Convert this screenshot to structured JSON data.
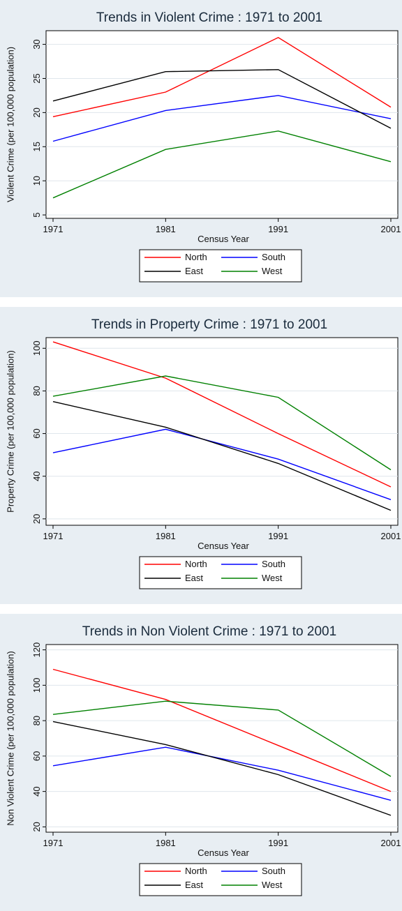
{
  "chart_data": [
    {
      "type": "line",
      "title": "Trends in Violent Crime : 1971 to 2001",
      "xlabel": "Census Year",
      "ylabel": "Violent Crime (per 100,000 population)",
      "x": [
        1971,
        1981,
        1991,
        2001
      ],
      "x_ticks": [
        "1971",
        "1981",
        "1991",
        "2001"
      ],
      "ylim": [
        4.5,
        32
      ],
      "y_ticks": [
        5,
        10,
        15,
        20,
        25,
        30
      ],
      "legend": "bottom, 2 columns, boxed",
      "series": [
        {
          "name": "North",
          "color": "#ff0000",
          "values": [
            19.4,
            23.0,
            31.0,
            20.8
          ]
        },
        {
          "name": "South",
          "color": "#0000ff",
          "values": [
            15.8,
            20.3,
            22.5,
            19.1
          ]
        },
        {
          "name": "East",
          "color": "#000000",
          "values": [
            21.7,
            26.0,
            26.3,
            17.7
          ]
        },
        {
          "name": "West",
          "color": "#008000",
          "values": [
            7.5,
            14.6,
            17.3,
            12.8
          ]
        }
      ]
    },
    {
      "type": "line",
      "title": "Trends in Property Crime : 1971 to 2001",
      "xlabel": "Census Year",
      "ylabel": "Property Crime (per 100,000 population)",
      "x": [
        1971,
        1981,
        1991,
        2001
      ],
      "x_ticks": [
        "1971",
        "1981",
        "1991",
        "2001"
      ],
      "ylim": [
        17,
        105
      ],
      "y_ticks": [
        20,
        40,
        60,
        80,
        100
      ],
      "legend": "bottom, 2 columns, boxed",
      "series": [
        {
          "name": "North",
          "color": "#ff0000",
          "values": [
            103,
            86,
            60,
            35
          ]
        },
        {
          "name": "South",
          "color": "#0000ff",
          "values": [
            51,
            62,
            48,
            29
          ]
        },
        {
          "name": "East",
          "color": "#000000",
          "values": [
            75,
            63,
            46,
            24
          ]
        },
        {
          "name": "West",
          "color": "#008000",
          "values": [
            77.5,
            87,
            77,
            43
          ]
        }
      ]
    },
    {
      "type": "line",
      "title": "Trends in Non Violent Crime : 1971 to 2001",
      "xlabel": "Census Year",
      "ylabel": "Non Violent Crime (per 100,000 population)",
      "x": [
        1971,
        1981,
        1991,
        2001
      ],
      "x_ticks": [
        "1971",
        "1981",
        "1991",
        "2001"
      ],
      "ylim": [
        17,
        123
      ],
      "y_ticks": [
        20,
        40,
        60,
        80,
        100,
        120
      ],
      "legend": "bottom, 2 columns, boxed",
      "series": [
        {
          "name": "North",
          "color": "#ff0000",
          "values": [
            109,
            92,
            66,
            40
          ]
        },
        {
          "name": "South",
          "color": "#0000ff",
          "values": [
            54.5,
            65,
            52,
            35
          ]
        },
        {
          "name": "East",
          "color": "#000000",
          "values": [
            79.5,
            66.5,
            49.5,
            26.5
          ]
        },
        {
          "name": "West",
          "color": "#008000",
          "values": [
            83.5,
            91,
            86,
            48.5
          ]
        }
      ]
    }
  ]
}
